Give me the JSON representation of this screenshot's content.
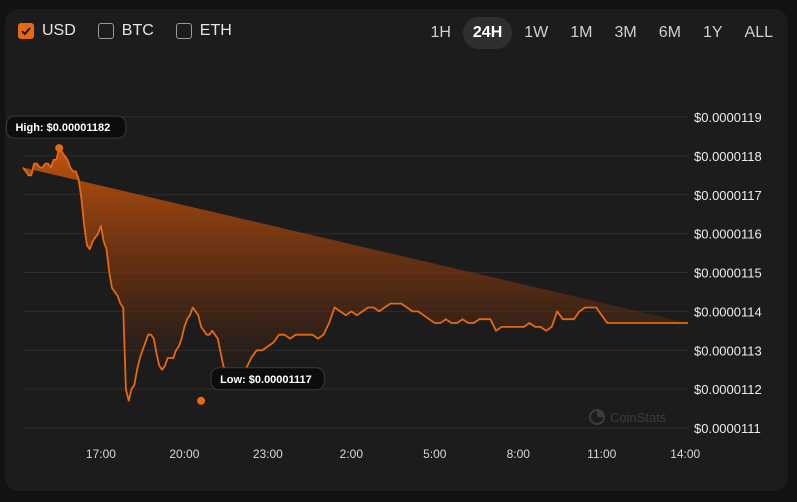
{
  "currencies": [
    {
      "label": "USD",
      "checked": true
    },
    {
      "label": "BTC",
      "checked": false
    },
    {
      "label": "ETH",
      "checked": false
    }
  ],
  "ranges": [
    {
      "label": "1H",
      "active": false
    },
    {
      "label": "24H",
      "active": true
    },
    {
      "label": "1W",
      "active": false
    },
    {
      "label": "1M",
      "active": false
    },
    {
      "label": "3M",
      "active": false
    },
    {
      "label": "6M",
      "active": false
    },
    {
      "label": "1Y",
      "active": false
    },
    {
      "label": "ALL",
      "active": false
    }
  ],
  "watermark": "CoinStats",
  "colors": {
    "accent": "#e8680f",
    "background": "#1c1c1c",
    "grid": "#2e2e2e"
  },
  "chart_data": {
    "type": "area",
    "title": "",
    "xlabel": "",
    "ylabel": "",
    "grid": true,
    "x_ticks": [
      "17:00",
      "20:00",
      "23:00",
      "2:00",
      "5:00",
      "8:00",
      "11:00",
      "14:00"
    ],
    "y_ticks": [
      "$0.0000119",
      "$0.0000118",
      "$0.0000117",
      "$0.0000116",
      "$0.0000115",
      "$0.0000114",
      "$0.0000113",
      "$0.0000112",
      "$0.0000111"
    ],
    "ylim": [
      1.11e-05,
      1.19e-05
    ],
    "xlim_hours_from_17": [
      -2.8,
      21.1
    ],
    "series": [
      {
        "values_x_hours_from_17": [
          -2.8,
          -2.7,
          -2.6,
          -2.5,
          -2.4,
          -2.3,
          -2.2,
          -2.1,
          -2.0,
          -1.9,
          -1.8,
          -1.7,
          -1.6,
          -1.5,
          -1.4,
          -1.3,
          -1.2,
          -1.1,
          -1.0,
          -0.9,
          -0.8,
          -0.7,
          -0.6,
          -0.5,
          -0.4,
          -0.3,
          -0.2,
          -0.1,
          0.0,
          0.1,
          0.2,
          0.3,
          0.4,
          0.5,
          0.6,
          0.7,
          0.8,
          0.9,
          1.0,
          1.1,
          1.2,
          1.3,
          1.4,
          1.5,
          1.6,
          1.7,
          1.8,
          1.9,
          2.0,
          2.1,
          2.2,
          2.3,
          2.4,
          2.5,
          2.6,
          2.7,
          2.8,
          2.9,
          3.0,
          3.1,
          3.2,
          3.3,
          3.4,
          3.5,
          3.6,
          3.7,
          3.8,
          3.9,
          4.0,
          4.2,
          4.4,
          4.6,
          4.8,
          5.0,
          5.2,
          5.4,
          5.6,
          5.8,
          6.0,
          6.2,
          6.4,
          6.6,
          6.8,
          7.0,
          7.2,
          7.4,
          7.6,
          7.8,
          8.0,
          8.2,
          8.4,
          8.6,
          8.8,
          9.0,
          9.2,
          9.4,
          9.6,
          9.8,
          10.0,
          10.2,
          10.4,
          10.6,
          10.8,
          11.0,
          11.2,
          11.4,
          11.6,
          11.8,
          12.0,
          12.2,
          12.4,
          12.6,
          12.8,
          13.0,
          13.2,
          13.4,
          13.6,
          13.8,
          14.0,
          14.2,
          14.4,
          14.6,
          14.8,
          15.0,
          15.2,
          15.4,
          15.6,
          15.8,
          16.0,
          16.2,
          16.4,
          16.6,
          16.8,
          17.0,
          17.2,
          17.4,
          17.6,
          17.8,
          18.0,
          18.2,
          18.4,
          18.6,
          18.8,
          19.0,
          19.2,
          19.4,
          19.6,
          19.8,
          20.0,
          20.2,
          20.4,
          20.6,
          20.8,
          21.0,
          21.1
        ],
        "values": [
          1.177e-05,
          1.176e-05,
          1.175e-05,
          1.175e-05,
          1.178e-05,
          1.178e-05,
          1.177e-05,
          1.177e-05,
          1.178e-05,
          1.178e-05,
          1.177e-05,
          1.179e-05,
          1.179e-05,
          1.182e-05,
          1.181e-05,
          1.18e-05,
          1.179e-05,
          1.177e-05,
          1.176e-05,
          1.176e-05,
          1.174e-05,
          1.169e-05,
          1.162e-05,
          1.157e-05,
          1.156e-05,
          1.158e-05,
          1.159e-05,
          1.16e-05,
          1.162e-05,
          1.158e-05,
          1.156e-05,
          1.15e-05,
          1.146e-05,
          1.145e-05,
          1.144e-05,
          1.142e-05,
          1.141e-05,
          1.12e-05,
          1.117e-05,
          1.12e-05,
          1.121e-05,
          1.125e-05,
          1.128e-05,
          1.13e-05,
          1.132e-05,
          1.134e-05,
          1.134e-05,
          1.133e-05,
          1.129e-05,
          1.126e-05,
          1.125e-05,
          1.126e-05,
          1.128e-05,
          1.128e-05,
          1.128e-05,
          1.13e-05,
          1.131e-05,
          1.133e-05,
          1.136e-05,
          1.138e-05,
          1.139e-05,
          1.141e-05,
          1.14e-05,
          1.139e-05,
          1.136e-05,
          1.135e-05,
          1.134e-05,
          1.134e-05,
          1.135e-05,
          1.133e-05,
          1.126e-05,
          1.123e-05,
          1.124e-05,
          1.123e-05,
          1.125e-05,
          1.128e-05,
          1.13e-05,
          1.13e-05,
          1.131e-05,
          1.132e-05,
          1.134e-05,
          1.134e-05,
          1.133e-05,
          1.134e-05,
          1.134e-05,
          1.134e-05,
          1.134e-05,
          1.133e-05,
          1.134e-05,
          1.137e-05,
          1.141e-05,
          1.14e-05,
          1.139e-05,
          1.14e-05,
          1.139e-05,
          1.14e-05,
          1.141e-05,
          1.141e-05,
          1.14e-05,
          1.141e-05,
          1.142e-05,
          1.142e-05,
          1.142e-05,
          1.141e-05,
          1.14e-05,
          1.14e-05,
          1.139e-05,
          1.138e-05,
          1.137e-05,
          1.137e-05,
          1.138e-05,
          1.137e-05,
          1.137e-05,
          1.138e-05,
          1.137e-05,
          1.137e-05,
          1.138e-05,
          1.138e-05,
          1.138e-05,
          1.135e-05,
          1.136e-05,
          1.136e-05,
          1.136e-05,
          1.136e-05,
          1.136e-05,
          1.137e-05,
          1.136e-05,
          1.136e-05,
          1.135e-05,
          1.136e-05,
          1.14e-05,
          1.138e-05,
          1.138e-05,
          1.138e-05,
          1.14e-05,
          1.141e-05,
          1.141e-05,
          1.141e-05,
          1.139e-05,
          1.137e-05,
          1.137e-05,
          1.137e-05,
          1.137e-05,
          1.137e-05,
          1.137e-05,
          1.137e-05,
          1.137e-05,
          1.137e-05,
          1.137e-05,
          1.137e-05,
          1.137e-05,
          1.137e-05,
          1.137e-05,
          1.137e-05,
          1.137e-05,
          1.137e-05,
          1.137e-05
        ]
      }
    ],
    "annotations": [
      {
        "label": "High: $0.00001182",
        "x_hours_from_17": -1.5,
        "value": 1.182e-05
      },
      {
        "label": "Low: $0.00001117",
        "x_hours_from_17": 3.6,
        "value": 1.117e-05
      }
    ]
  }
}
